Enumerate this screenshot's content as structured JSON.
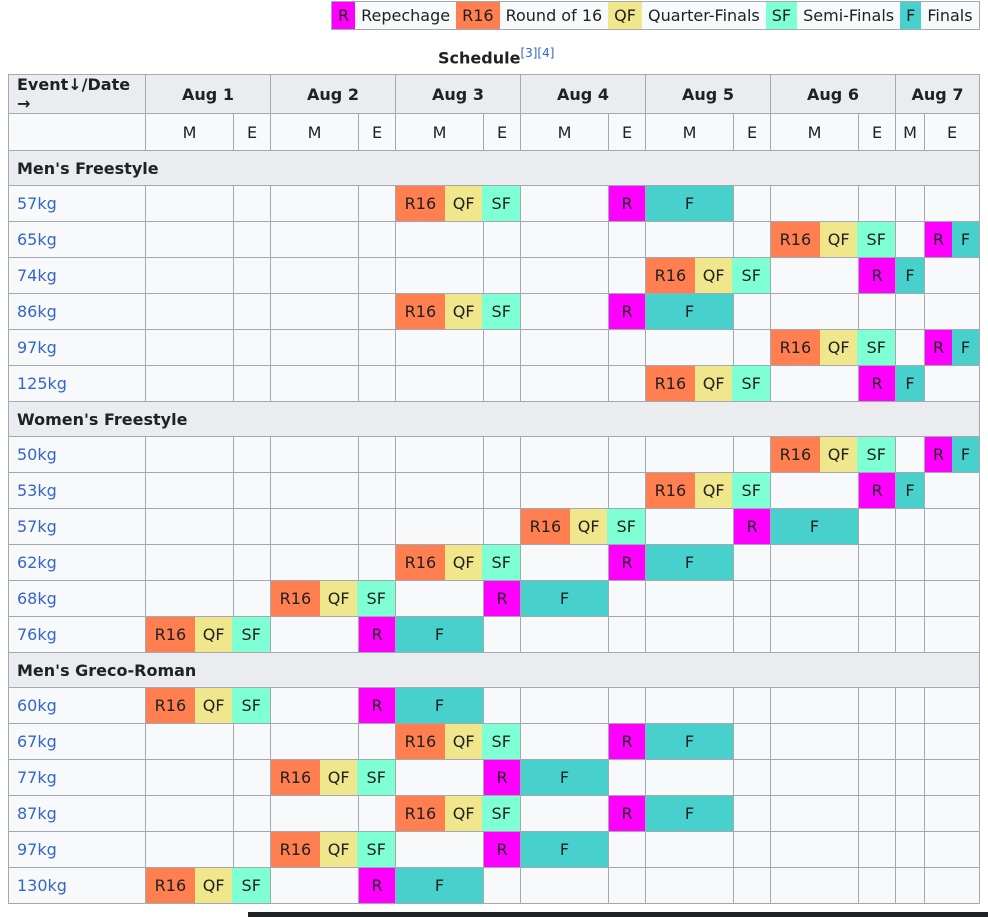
{
  "legend": [
    {
      "code": "R",
      "label": "Repechage",
      "cls": "R"
    },
    {
      "code": "R16",
      "label": "Round of 16",
      "cls": "R16"
    },
    {
      "code": "QF",
      "label": "Quarter-Finals",
      "cls": "QF"
    },
    {
      "code": "SF",
      "label": "Semi-Finals",
      "cls": "SF"
    },
    {
      "code": "F",
      "label": "Finals",
      "cls": "F"
    }
  ],
  "caption": {
    "title": "Schedule",
    "refs": "[3][4]"
  },
  "header": {
    "event_date": "Event↓/Date →",
    "days": [
      "Aug 1",
      "Aug 2",
      "Aug 3",
      "Aug 4",
      "Aug 5",
      "Aug 6",
      "Aug 7"
    ],
    "sessions": [
      "M",
      "E",
      "M",
      "E",
      "M",
      "E",
      "M",
      "E",
      "M",
      "E",
      "M",
      "E",
      "M",
      "E"
    ]
  },
  "sections": [
    {
      "name": "Men's Freestyle",
      "events": [
        {
          "name": "57kg",
          "schedule": [
            {
              "start": 4,
              "span": 3,
              "kind": "prelim"
            },
            {
              "start": 7,
              "span": 1,
              "kind": "R"
            },
            {
              "start": 8,
              "span": 1,
              "kind": "F"
            }
          ]
        },
        {
          "name": "65kg",
          "schedule": [
            {
              "start": 10,
              "span": 3,
              "kind": "prelim"
            },
            {
              "start": 13,
              "span": 1,
              "kind": "RF"
            }
          ]
        },
        {
          "name": "74kg",
          "schedule": [
            {
              "start": 8,
              "span": 3,
              "kind": "prelim"
            },
            {
              "start": 11,
              "span": 1,
              "kind": "R"
            },
            {
              "start": 12,
              "span": 1,
              "kind": "F"
            }
          ]
        },
        {
          "name": "86kg",
          "schedule": [
            {
              "start": 4,
              "span": 3,
              "kind": "prelim"
            },
            {
              "start": 7,
              "span": 1,
              "kind": "R"
            },
            {
              "start": 8,
              "span": 1,
              "kind": "F"
            }
          ]
        },
        {
          "name": "97kg",
          "schedule": [
            {
              "start": 10,
              "span": 3,
              "kind": "prelim"
            },
            {
              "start": 13,
              "span": 1,
              "kind": "RF"
            }
          ]
        },
        {
          "name": "125kg",
          "schedule": [
            {
              "start": 8,
              "span": 3,
              "kind": "prelim"
            },
            {
              "start": 11,
              "span": 1,
              "kind": "R"
            },
            {
              "start": 12,
              "span": 1,
              "kind": "F"
            }
          ]
        }
      ]
    },
    {
      "name": "Women's Freestyle",
      "events": [
        {
          "name": "50kg",
          "schedule": [
            {
              "start": 10,
              "span": 3,
              "kind": "prelim"
            },
            {
              "start": 13,
              "span": 1,
              "kind": "RF"
            }
          ]
        },
        {
          "name": "53kg",
          "schedule": [
            {
              "start": 8,
              "span": 3,
              "kind": "prelim"
            },
            {
              "start": 11,
              "span": 1,
              "kind": "R"
            },
            {
              "start": 12,
              "span": 1,
              "kind": "F"
            }
          ]
        },
        {
          "name": "57kg",
          "schedule": [
            {
              "start": 6,
              "span": 3,
              "kind": "prelim"
            },
            {
              "start": 9,
              "span": 1,
              "kind": "R"
            },
            {
              "start": 10,
              "span": 1,
              "kind": "F"
            }
          ]
        },
        {
          "name": "62kg",
          "schedule": [
            {
              "start": 4,
              "span": 3,
              "kind": "prelim"
            },
            {
              "start": 7,
              "span": 1,
              "kind": "R"
            },
            {
              "start": 8,
              "span": 1,
              "kind": "F"
            }
          ]
        },
        {
          "name": "68kg",
          "schedule": [
            {
              "start": 2,
              "span": 3,
              "kind": "prelim"
            },
            {
              "start": 5,
              "span": 1,
              "kind": "R"
            },
            {
              "start": 6,
              "span": 1,
              "kind": "F"
            }
          ]
        },
        {
          "name": "76kg",
          "schedule": [
            {
              "start": 0,
              "span": 3,
              "kind": "prelim"
            },
            {
              "start": 3,
              "span": 1,
              "kind": "R"
            },
            {
              "start": 4,
              "span": 1,
              "kind": "F"
            }
          ]
        }
      ]
    },
    {
      "name": "Men's Greco-Roman",
      "events": [
        {
          "name": "60kg",
          "schedule": [
            {
              "start": 0,
              "span": 3,
              "kind": "prelim"
            },
            {
              "start": 3,
              "span": 1,
              "kind": "R"
            },
            {
              "start": 4,
              "span": 1,
              "kind": "F"
            }
          ]
        },
        {
          "name": "67kg",
          "schedule": [
            {
              "start": 4,
              "span": 3,
              "kind": "prelim"
            },
            {
              "start": 7,
              "span": 1,
              "kind": "R"
            },
            {
              "start": 8,
              "span": 1,
              "kind": "F"
            }
          ]
        },
        {
          "name": "77kg",
          "schedule": [
            {
              "start": 2,
              "span": 3,
              "kind": "prelim"
            },
            {
              "start": 5,
              "span": 1,
              "kind": "R"
            },
            {
              "start": 6,
              "span": 1,
              "kind": "F"
            }
          ]
        },
        {
          "name": "87kg",
          "schedule": [
            {
              "start": 4,
              "span": 3,
              "kind": "prelim"
            },
            {
              "start": 7,
              "span": 1,
              "kind": "R"
            },
            {
              "start": 8,
              "span": 1,
              "kind": "F"
            }
          ]
        },
        {
          "name": "97kg",
          "schedule": [
            {
              "start": 2,
              "span": 3,
              "kind": "prelim"
            },
            {
              "start": 5,
              "span": 1,
              "kind": "R"
            },
            {
              "start": 6,
              "span": 1,
              "kind": "F"
            }
          ]
        },
        {
          "name": "130kg",
          "schedule": [
            {
              "start": 0,
              "span": 3,
              "kind": "prelim"
            },
            {
              "start": 3,
              "span": 1,
              "kind": "R"
            },
            {
              "start": 4,
              "span": 1,
              "kind": "F"
            }
          ]
        }
      ]
    }
  ],
  "colors": {
    "R": "#ff00ff",
    "R16": "#ff7f50",
    "QF": "#f0e68c",
    "SF": "#7fffd4",
    "F": "#48d1cc"
  }
}
